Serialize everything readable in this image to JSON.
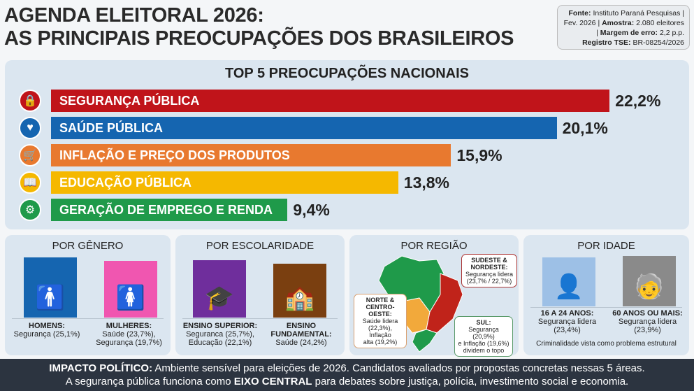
{
  "header": {
    "title_line1": "AGENDA ELEITORAL 2026:",
    "title_line2": "AS PRINCIPAIS PREOCUPAÇÕES DOS BRASILEIROS"
  },
  "source": {
    "fonte_label": "Fonte:",
    "fonte": "Instituto Paraná Pesquisas |",
    "data": "Fev. 2026 |",
    "amostra_label": "Amostra:",
    "amostra": "2.080 eleitores",
    "sep": "|",
    "margem_label": "Margem de erro:",
    "margem": "2,2 p.p.",
    "registro_label": "Registro TSE:",
    "registro": "BR-08254/2026"
  },
  "chart_data": {
    "type": "bar",
    "title": "TOP 5 PREOCUPAÇÕES NACIONAIS",
    "categories": [
      "SEGURANÇA PÚBLICA",
      "SAÚDE PÚBLICA",
      "INFLAÇÃO E PREÇO DOS PRODUTOS",
      "EDUCAÇÃO PÚBLICA",
      "GERAÇÃO DE EMPREGO E RENDA"
    ],
    "values": [
      22.2,
      20.1,
      15.9,
      13.8,
      9.4
    ],
    "value_labels": [
      "22,2%",
      "20,1%",
      "15,9%",
      "13,8%",
      "9,4%"
    ],
    "colors": [
      "#c0141a",
      "#1565b0",
      "#e8792f",
      "#f5b800",
      "#1f9a4a"
    ],
    "icons": [
      "lock-icon",
      "heart-plus-icon",
      "cart-icon",
      "book-icon",
      "gears-money-icon"
    ],
    "xlabel": "",
    "ylabel": "",
    "xlim": [
      0,
      25
    ]
  },
  "genero": {
    "title": "POR GÊNERO",
    "homens_label": "HOMENS:",
    "homens_text": "Segurança (25,1%)",
    "mulheres_label": "MULHERES:",
    "mulheres_l1": "Saúde (23,7%),",
    "mulheres_l2": "Segurança (19,7%)"
  },
  "escolaridade": {
    "title": "POR ESCOLARIDADE",
    "sup_label": "ENSINO SUPERIOR:",
    "sup_l1": "Seguranca (25,7%),",
    "sup_l2": "Educação (22,1%)",
    "fund_label1": "ENSINO",
    "fund_label2": "FUNDAMENTAL:",
    "fund_text": "Saúde (24,2%)"
  },
  "regiao": {
    "title": "POR REGIÃO",
    "se_label1": "SUDESTE &",
    "se_label2": "NORDESTE:",
    "se_l1": "Segurança lidera",
    "se_l2": "(23,7% / 22,7%)",
    "no_label1": "NORTE &",
    "no_label2": "CENTRO-OESTE:",
    "no_l1": "Saúde lidera",
    "no_l2": "(22,3%), Inflação",
    "no_l3": "alta (19,2%)",
    "sul_label": "SUL:",
    "sul_l1": "Segurança (20,9%)",
    "sul_l2": "e Inflação (19,6%)",
    "sul_l3": "dividem o topo"
  },
  "idade": {
    "title": "POR IDADE",
    "jovem_label": "16 A 24 ANOS:",
    "jovem_l1": "Segurança lidera",
    "jovem_l2": "(23,4%)",
    "idoso_label": "60 ANOS OU MAIS:",
    "idoso_l1": "Segurança lidera",
    "idoso_l2": "(23,9%)",
    "note": "Criminalidade vista como problema estrutural"
  },
  "footer": {
    "l1_bold": "IMPACTO POLÍTICO:",
    "l1": "Ambiente sensível para eleições de 2026. Candidatos avaliados por propostas concretas nessas 5 áreas.",
    "l2a": "A segurança pública funciona como",
    "l2_bold": "EIXO CENTRAL",
    "l2b": "para debates sobre justiça, polícia, investimento social e economia."
  }
}
